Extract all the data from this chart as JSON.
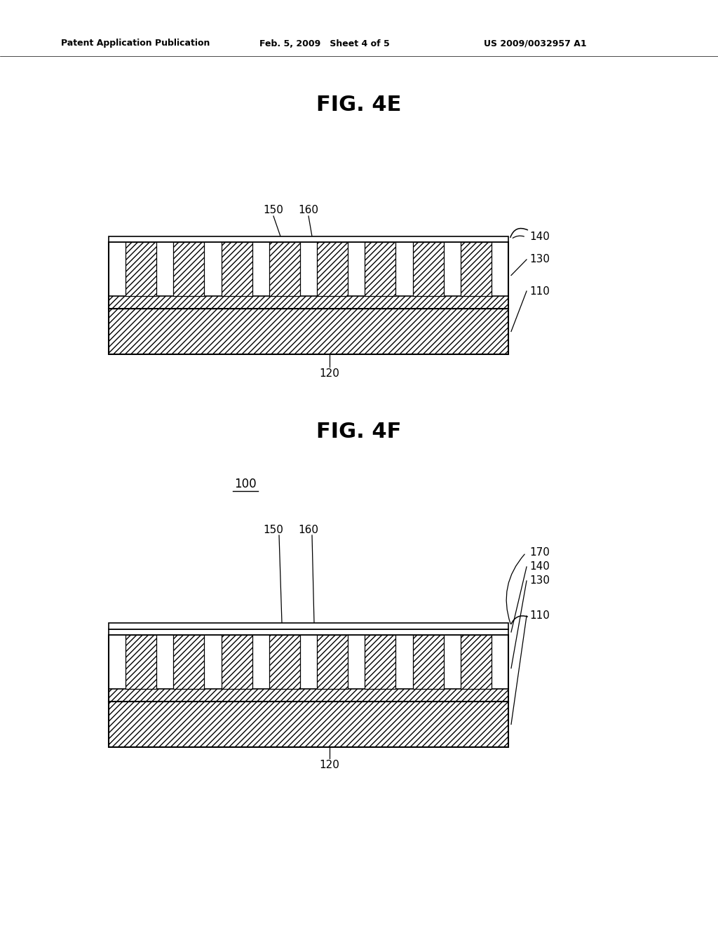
{
  "bg_color": "#ffffff",
  "header_left": "Patent Application Publication",
  "header_mid": "Feb. 5, 2009   Sheet 4 of 5",
  "header_right": "US 2009/0032957 A1",
  "fig4e_title": "FIG. 4E",
  "fig4f_title": "FIG. 4F",
  "fig4f_ref": "100",
  "label_fs": 11,
  "title_fs": 22,
  "header_fs": 9,
  "ref_fs": 12
}
